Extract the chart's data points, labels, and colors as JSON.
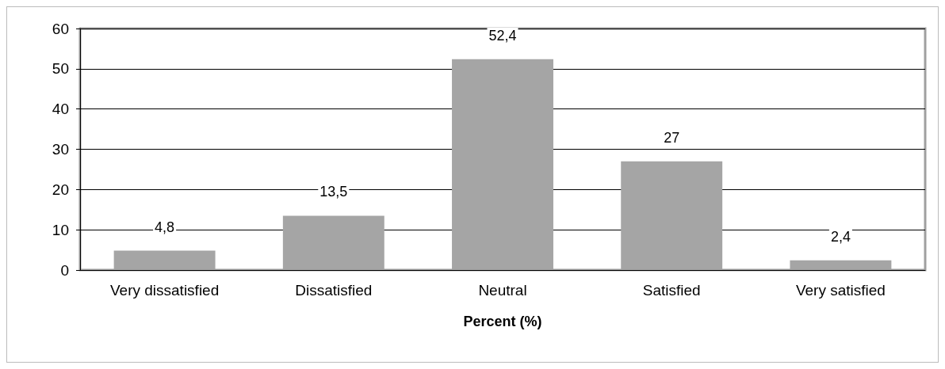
{
  "chart_data": {
    "type": "bar",
    "xlabel": "Percent (%)",
    "categories": [
      "Very dissatisfied",
      "Dissatisfied",
      "Neutral",
      "Satisfied",
      "Very satisfied"
    ],
    "values": [
      4.8,
      13.5,
      52.4,
      27,
      2.4
    ],
    "value_labels": [
      "4,8",
      "13,5",
      "52,4",
      "27",
      "2,4"
    ],
    "color": "#a5a5a5",
    "ylim": [
      0,
      60
    ],
    "yticks": [
      0,
      10,
      20,
      30,
      40,
      50,
      60
    ],
    "grid": "y"
  }
}
